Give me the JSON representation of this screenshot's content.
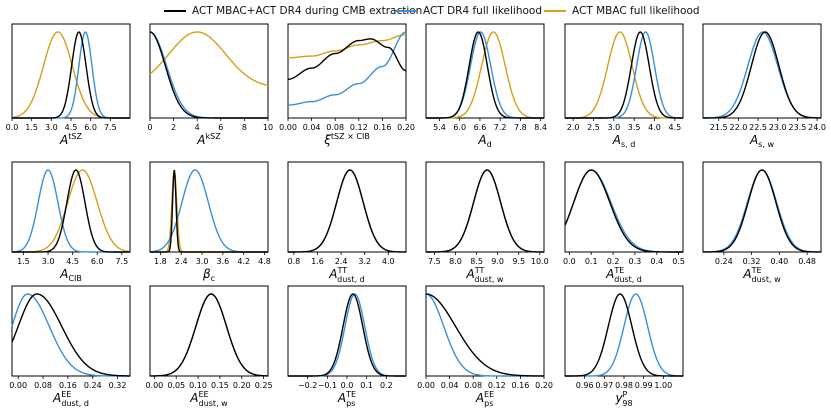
{
  "legend": [
    {
      "name": "ACT MBAC+ACT DR4 during CMB extraction",
      "color": "#000000"
    },
    {
      "name": "ACT DR4 full likelihood",
      "color": "#3a8fd8"
    },
    {
      "name": "ACT MBAC full likelihood",
      "color": "#d4a017"
    }
  ],
  "chart_data": [
    {
      "type": "line",
      "title": "",
      "xlabel_main": "A",
      "xlabel_sup": "tSZ",
      "xlabel_sub": "",
      "xlim": [
        0,
        9
      ],
      "ticks": [
        "0.0",
        "1.5",
        "3.0",
        "4.5",
        "6.0",
        "7.5"
      ],
      "tick_values": [
        0,
        1.5,
        3,
        4.5,
        6,
        7.5
      ],
      "series": [
        {
          "name": "ACT MBAC+ACT DR4 during CMB extraction",
          "mean": 5.1,
          "sigma": 0.55
        },
        {
          "name": "ACT DR4 full likelihood",
          "mean": 5.6,
          "sigma": 0.5
        },
        {
          "name": "ACT MBAC full likelihood",
          "mean": 3.5,
          "sigma": 1.1
        }
      ]
    },
    {
      "type": "line",
      "xlabel_main": "A",
      "xlabel_sup": "kSZ",
      "xlabel_sub": "",
      "xlim": [
        0,
        10
      ],
      "ticks": [
        "0",
        "2",
        "4",
        "6",
        "8",
        "10"
      ],
      "tick_values": [
        0,
        2,
        4,
        6,
        8,
        10
      ],
      "series": [
        {
          "name": "ACT MBAC+ACT DR4 during CMB extraction",
          "shape": "halfnormal",
          "sigma": 1.3
        },
        {
          "name": "ACT DR4 full likelihood",
          "shape": "halfnormal",
          "sigma": 1.4
        },
        {
          "name": "ACT MBAC full likelihood",
          "mean": 4.0,
          "sigma": 2.4,
          "floor": 0.35
        }
      ]
    },
    {
      "type": "line",
      "xlabel_main": "ξ",
      "xlabel_sup": "tSZ × CIB",
      "xlabel_sub": "",
      "xlim": [
        0,
        0.2
      ],
      "ticks": [
        "0.00",
        "0.04",
        "0.08",
        "0.12",
        "0.16",
        "0.20"
      ],
      "tick_values": [
        0,
        0.04,
        0.08,
        0.12,
        0.16,
        0.2
      ],
      "series": [
        {
          "name": "ACT MBAC+ACT DR4 during CMB extraction",
          "points": [
            [
              0,
              0.45
            ],
            [
              0.04,
              0.58
            ],
            [
              0.08,
              0.75
            ],
            [
              0.12,
              0.9
            ],
            [
              0.14,
              0.92
            ],
            [
              0.17,
              0.82
            ],
            [
              0.2,
              0.55
            ]
          ]
        },
        {
          "name": "ACT DR4 full likelihood",
          "points": [
            [
              0,
              0.15
            ],
            [
              0.04,
              0.19
            ],
            [
              0.08,
              0.27
            ],
            [
              0.12,
              0.4
            ],
            [
              0.16,
              0.6
            ],
            [
              0.2,
              1.0
            ]
          ]
        },
        {
          "name": "ACT MBAC full likelihood",
          "points": [
            [
              0,
              0.7
            ],
            [
              0.04,
              0.72
            ],
            [
              0.08,
              0.78
            ],
            [
              0.12,
              0.85
            ],
            [
              0.16,
              0.9
            ],
            [
              0.2,
              0.97
            ]
          ]
        }
      ]
    },
    {
      "type": "line",
      "xlabel_main": "A",
      "xlabel_sup": "",
      "xlabel_sub": "d",
      "xlim": [
        5,
        8.5
      ],
      "ticks": [
        "5.4",
        "6.0",
        "6.6",
        "7.2",
        "7.8",
        "8.4"
      ],
      "tick_values": [
        5.4,
        6,
        6.6,
        7.2,
        7.8,
        8.4
      ],
      "series": [
        {
          "name": "ACT MBAC+ACT DR4 during CMB extraction",
          "mean": 6.55,
          "sigma": 0.27
        },
        {
          "name": "ACT DR4 full likelihood",
          "mean": 6.62,
          "sigma": 0.3
        },
        {
          "name": "ACT MBAC full likelihood",
          "mean": 7.0,
          "sigma": 0.35
        }
      ]
    },
    {
      "type": "line",
      "xlabel_main": "A",
      "xlabel_sup": "",
      "xlabel_sub": "s, d",
      "xlim": [
        1.8,
        4.7
      ],
      "ticks": [
        "2.0",
        "2.5",
        "3.0",
        "3.5",
        "4.0",
        "4.5"
      ],
      "tick_values": [
        2,
        2.5,
        3,
        3.5,
        4,
        4.5
      ],
      "series": [
        {
          "name": "ACT MBAC+ACT DR4 during CMB extraction",
          "mean": 3.65,
          "sigma": 0.22
        },
        {
          "name": "ACT DR4 full likelihood",
          "mean": 3.78,
          "sigma": 0.22
        },
        {
          "name": "ACT MBAC full likelihood",
          "mean": 3.15,
          "sigma": 0.3
        }
      ]
    },
    {
      "type": "line",
      "xlabel_main": "A",
      "xlabel_sup": "",
      "xlabel_sub": "s, w",
      "xlim": [
        21.1,
        24.1
      ],
      "ticks": [
        "21.5",
        "22.0",
        "22.5",
        "23.0",
        "23.5",
        "24.0"
      ],
      "tick_values": [
        21.5,
        22,
        22.5,
        23,
        23.5,
        24
      ],
      "series": [
        {
          "name": "ACT MBAC+ACT DR4 during CMB extraction",
          "mean": 22.68,
          "sigma": 0.35
        },
        {
          "name": "ACT DR4 full likelihood",
          "mean": 22.62,
          "sigma": 0.38
        }
      ]
    },
    {
      "type": "line",
      "xlabel_main": "A",
      "xlabel_sup": "",
      "xlabel_sub": "CIB",
      "xlim": [
        0.8,
        8
      ],
      "ticks": [
        "1.5",
        "3.0",
        "4.5",
        "6.0",
        "7.5"
      ],
      "tick_values": [
        1.5,
        3,
        4.5,
        6,
        7.5
      ],
      "series": [
        {
          "name": "ACT MBAC+ACT DR4 during CMB extraction",
          "mean": 4.7,
          "sigma": 0.55
        },
        {
          "name": "ACT DR4 full likelihood",
          "mean": 3.0,
          "sigma": 0.6
        },
        {
          "name": "ACT MBAC full likelihood",
          "mean": 5.1,
          "sigma": 0.9
        }
      ]
    },
    {
      "type": "line",
      "xlabel_main": "β",
      "xlabel_sup": "",
      "xlabel_sub": "c",
      "xlim": [
        1.5,
        4.9
      ],
      "ticks": [
        "1.8",
        "2.4",
        "3.0",
        "3.6",
        "4.2",
        "4.8"
      ],
      "tick_values": [
        1.8,
        2.4,
        3,
        3.6,
        4.2,
        4.8
      ],
      "series": [
        {
          "name": "ACT MBAC+ACT DR4 during CMB extraction",
          "mean": 2.2,
          "sigma": 0.05
        },
        {
          "name": "ACT DR4 full likelihood",
          "mean": 2.8,
          "sigma": 0.38
        },
        {
          "name": "ACT MBAC full likelihood",
          "mean": 2.2,
          "sigma": 0.07
        }
      ]
    },
    {
      "type": "line",
      "xlabel_main": "A",
      "xlabel_sup": "TT",
      "xlabel_sub": "dust, d",
      "xlim": [
        0.6,
        4.6
      ],
      "ticks": [
        "0.8",
        "1.6",
        "2.4",
        "3.2",
        "4.0"
      ],
      "tick_values": [
        0.8,
        1.6,
        2.4,
        3.2,
        4
      ],
      "series": [
        {
          "name": "ACT MBAC+ACT DR4 during CMB extraction",
          "mean": 2.7,
          "sigma": 0.45
        },
        {
          "name": "ACT DR4 full likelihood",
          "mean": 2.7,
          "sigma": 0.45
        }
      ]
    },
    {
      "type": "line",
      "xlabel_main": "A",
      "xlabel_sup": "TT",
      "xlabel_sub": "dust, w",
      "xlim": [
        7.3,
        10.1
      ],
      "ticks": [
        "7.5",
        "8.0",
        "8.5",
        "9.0",
        "9.5",
        "10.0"
      ],
      "tick_values": [
        7.5,
        8,
        8.5,
        9,
        9.5,
        10
      ],
      "series": [
        {
          "name": "ACT MBAC+ACT DR4 during CMB extraction",
          "mean": 8.75,
          "sigma": 0.32
        },
        {
          "name": "ACT DR4 full likelihood",
          "mean": 8.75,
          "sigma": 0.32
        }
      ]
    },
    {
      "type": "line",
      "xlabel_main": "A",
      "xlabel_sup": "TE",
      "xlabel_sub": "dust, d",
      "xlim": [
        -0.02,
        0.52
      ],
      "ticks": [
        "0.0",
        "0.1",
        "0.2",
        "0.3",
        "0.4",
        "0.5"
      ],
      "tick_values": [
        0,
        0.1,
        0.2,
        0.3,
        0.4,
        0.5
      ],
      "series": [
        {
          "name": "ACT MBAC+ACT DR4 during CMB extraction",
          "mean": 0.1,
          "sigma_left": 0.08,
          "sigma_right": 0.085
        },
        {
          "name": "ACT DR4 full likelihood",
          "mean": 0.1,
          "sigma_left": 0.08,
          "sigma_right": 0.09
        }
      ]
    },
    {
      "type": "line",
      "xlabel_main": "A",
      "xlabel_sup": "TE",
      "xlabel_sub": "dust, w",
      "xlim": [
        0.18,
        0.52
      ],
      "ticks": [
        "0.24",
        "0.32",
        "0.40",
        "0.48"
      ],
      "tick_values": [
        0.24,
        0.32,
        0.4,
        0.48
      ],
      "series": [
        {
          "name": "ACT MBAC+ACT DR4 during CMB extraction",
          "mean": 0.35,
          "sigma": 0.04
        },
        {
          "name": "ACT DR4 full likelihood",
          "mean": 0.35,
          "sigma": 0.042
        }
      ]
    },
    {
      "type": "line",
      "xlabel_main": "A",
      "xlabel_sup": "EE",
      "xlabel_sub": "dust, d",
      "xlim": [
        -0.02,
        0.36
      ],
      "ticks": [
        "0.00",
        "0.08",
        "0.16",
        "0.24",
        "0.32"
      ],
      "tick_values": [
        0,
        0.08,
        0.16,
        0.24,
        0.32
      ],
      "series": [
        {
          "name": "ACT MBAC+ACT DR4 during CMB extraction",
          "mean": 0.06,
          "sigma_left": 0.06,
          "sigma_right": 0.08
        },
        {
          "name": "ACT DR4 full likelihood",
          "mean": 0.03,
          "sigma_left": 0.05,
          "sigma_right": 0.07
        }
      ]
    },
    {
      "type": "line",
      "xlabel_main": "A",
      "xlabel_sup": "EE",
      "xlabel_sub": "dust, w",
      "xlim": [
        -0.01,
        0.26
      ],
      "ticks": [
        "0.00",
        "0.05",
        "0.10",
        "0.15",
        "0.20",
        "0.25"
      ],
      "tick_values": [
        0,
        0.05,
        0.1,
        0.15,
        0.2,
        0.25
      ],
      "series": [
        {
          "name": "ACT MBAC+ACT DR4 during CMB extraction",
          "mean": 0.13,
          "sigma": 0.035
        },
        {
          "name": "ACT DR4 full likelihood",
          "mean": 0.13,
          "sigma": 0.035
        }
      ]
    },
    {
      "type": "line",
      "xlabel_main": "A",
      "xlabel_sup": "TE",
      "xlabel_sub": "ps",
      "xlim": [
        -0.3,
        0.3
      ],
      "ticks": [
        "−0.2",
        "−0.1",
        "0.0",
        "0.1",
        "0.2"
      ],
      "tick_values": [
        -0.2,
        -0.1,
        0,
        0.1,
        0.2
      ],
      "series": [
        {
          "name": "ACT MBAC+ACT DR4 during CMB extraction",
          "mean": 0.03,
          "sigma": 0.05
        },
        {
          "name": "ACT DR4 full likelihood",
          "mean": 0.04,
          "sigma": 0.05
        }
      ]
    },
    {
      "type": "line",
      "xlabel_main": "A",
      "xlabel_sup": "EE",
      "xlabel_sub": "ps",
      "xlim": [
        0,
        0.2
      ],
      "ticks": [
        "0.00",
        "0.04",
        "0.08",
        "0.12",
        "0.16",
        "0.20"
      ],
      "tick_values": [
        0,
        0.04,
        0.08,
        0.12,
        0.16,
        0.2
      ],
      "series": [
        {
          "name": "ACT MBAC+ACT DR4 during CMB extraction",
          "shape": "halfnormal",
          "sigma": 0.05
        },
        {
          "name": "ACT DR4 full likelihood",
          "shape": "halfnormal",
          "sigma": 0.03
        }
      ]
    },
    {
      "type": "line",
      "xlabel_main": "y",
      "xlabel_sup": "P",
      "xlabel_sub": "98",
      "xlim": [
        0.95,
        1.01
      ],
      "ticks": [
        "0.96",
        "0.97",
        "0.98",
        "0.99",
        "1.00"
      ],
      "tick_values": [
        0.96,
        0.97,
        0.98,
        0.99,
        1.0
      ],
      "series": [
        {
          "name": "ACT MBAC+ACT DR4 during CMB extraction",
          "mean": 0.978,
          "sigma": 0.006
        },
        {
          "name": "ACT DR4 full likelihood",
          "mean": 0.986,
          "sigma": 0.006
        }
      ]
    }
  ]
}
